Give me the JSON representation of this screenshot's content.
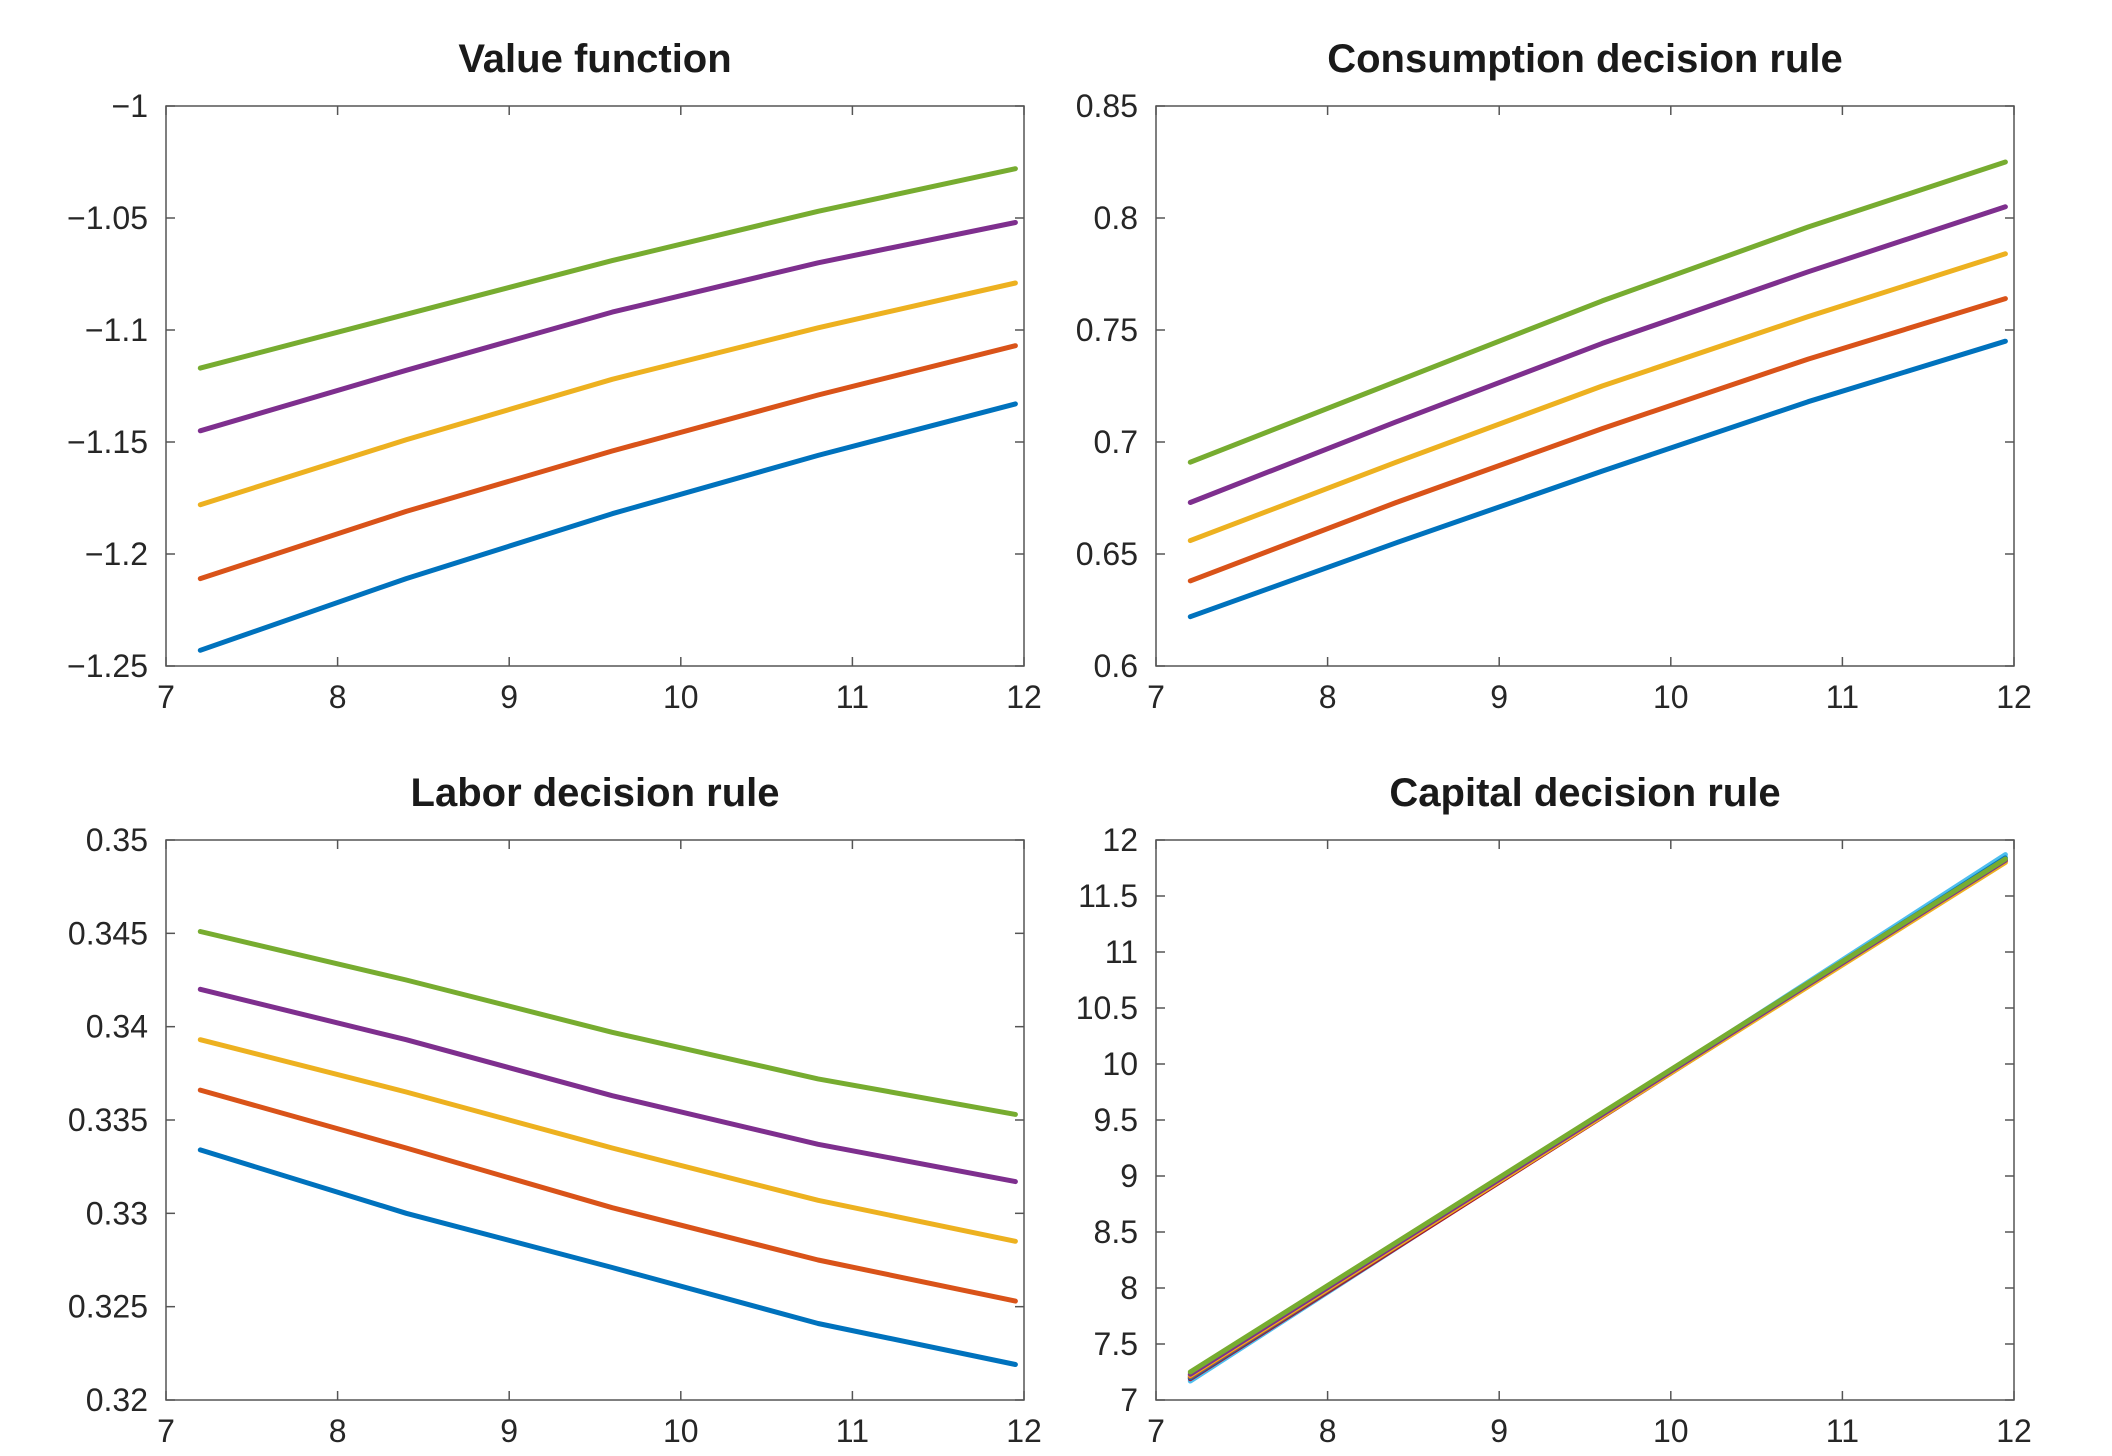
{
  "chart_data": [
    {
      "type": "line",
      "title": "Value function",
      "xlabel": "",
      "ylabel": "",
      "xlim": [
        7,
        12
      ],
      "ylim": [
        -1.25,
        -1
      ],
      "xticks": [
        "7",
        "8",
        "9",
        "10",
        "11",
        "12"
      ],
      "yticks": [
        "-1.25",
        "-1.2",
        "-1.15",
        "-1.1",
        "-1.05",
        "-1"
      ],
      "grid": false,
      "x": [
        7.2,
        8.4,
        9.6,
        10.8,
        11.95
      ],
      "series": [
        {
          "color": "#77ac30",
          "values": [
            -1.117,
            -1.093,
            -1.069,
            -1.047,
            -1.028
          ]
        },
        {
          "color": "#7e2f8e",
          "values": [
            -1.145,
            -1.118,
            -1.092,
            -1.07,
            -1.052
          ]
        },
        {
          "color": "#edb120",
          "values": [
            -1.178,
            -1.149,
            -1.122,
            -1.099,
            -1.079
          ]
        },
        {
          "color": "#d95319",
          "values": [
            -1.211,
            -1.181,
            -1.154,
            -1.129,
            -1.107
          ]
        },
        {
          "color": "#0072bd",
          "values": [
            -1.243,
            -1.211,
            -1.182,
            -1.156,
            -1.133
          ]
        }
      ]
    },
    {
      "type": "line",
      "title": "Consumption decision rule",
      "xlabel": "",
      "ylabel": "",
      "xlim": [
        7,
        12
      ],
      "ylim": [
        0.6,
        0.85
      ],
      "xticks": [
        "7",
        "8",
        "9",
        "10",
        "11",
        "12"
      ],
      "yticks": [
        "0.6",
        "0.65",
        "0.7",
        "0.75",
        "0.8",
        "0.85"
      ],
      "grid": false,
      "x": [
        7.2,
        8.4,
        9.6,
        10.8,
        11.95
      ],
      "series": [
        {
          "color": "#77ac30",
          "values": [
            0.691,
            0.727,
            0.763,
            0.796,
            0.825
          ]
        },
        {
          "color": "#7e2f8e",
          "values": [
            0.673,
            0.709,
            0.744,
            0.776,
            0.805
          ]
        },
        {
          "color": "#edb120",
          "values": [
            0.656,
            0.691,
            0.725,
            0.756,
            0.784
          ]
        },
        {
          "color": "#d95319",
          "values": [
            0.638,
            0.673,
            0.706,
            0.737,
            0.764
          ]
        },
        {
          "color": "#0072bd",
          "values": [
            0.622,
            0.655,
            0.687,
            0.718,
            0.745
          ]
        }
      ]
    },
    {
      "type": "line",
      "title": "Labor decision rule",
      "xlabel": "",
      "ylabel": "",
      "xlim": [
        7,
        12
      ],
      "ylim": [
        0.32,
        0.35
      ],
      "xticks": [
        "7",
        "8",
        "9",
        "10",
        "11",
        "12"
      ],
      "yticks": [
        "0.32",
        "0.325",
        "0.33",
        "0.335",
        "0.34",
        "0.345",
        "0.35"
      ],
      "grid": false,
      "x": [
        7.2,
        8.4,
        9.6,
        10.8,
        11.95
      ],
      "series": [
        {
          "color": "#77ac30",
          "values": [
            0.3451,
            0.3425,
            0.3397,
            0.3372,
            0.3353
          ]
        },
        {
          "color": "#7e2f8e",
          "values": [
            0.342,
            0.3393,
            0.3363,
            0.3337,
            0.3317
          ]
        },
        {
          "color": "#edb120",
          "values": [
            0.3393,
            0.3365,
            0.3335,
            0.3307,
            0.3285
          ]
        },
        {
          "color": "#d95319",
          "values": [
            0.3366,
            0.3335,
            0.3303,
            0.3275,
            0.3253
          ]
        },
        {
          "color": "#0072bd",
          "values": [
            0.3334,
            0.33,
            0.3271,
            0.3241,
            0.3219
          ]
        }
      ]
    },
    {
      "type": "line",
      "title": "Capital decision rule",
      "xlabel": "",
      "ylabel": "",
      "xlim": [
        7,
        12
      ],
      "ylim": [
        7,
        12
      ],
      "xticks": [
        "7",
        "8",
        "9",
        "10",
        "11",
        "12"
      ],
      "yticks": [
        "7",
        "7.5",
        "8",
        "8.5",
        "9",
        "9.5",
        "10",
        "10.5",
        "11",
        "11.5",
        "12"
      ],
      "grid": false,
      "x": [
        7.2,
        11.95
      ],
      "series": [
        {
          "color": "#4dbeee",
          "values": [
            7.17,
            11.87
          ]
        },
        {
          "color": "#a2142f",
          "values": [
            7.19,
            11.82
          ]
        },
        {
          "color": "#0072bd",
          "values": [
            7.2,
            11.84
          ]
        },
        {
          "color": "#d95319",
          "values": [
            7.21,
            11.81
          ]
        },
        {
          "color": "#edb120",
          "values": [
            7.22,
            11.8
          ]
        },
        {
          "color": "#7e2f8e",
          "values": [
            7.23,
            11.82
          ]
        },
        {
          "color": "#77ac30",
          "values": [
            7.25,
            11.83
          ]
        }
      ]
    }
  ]
}
